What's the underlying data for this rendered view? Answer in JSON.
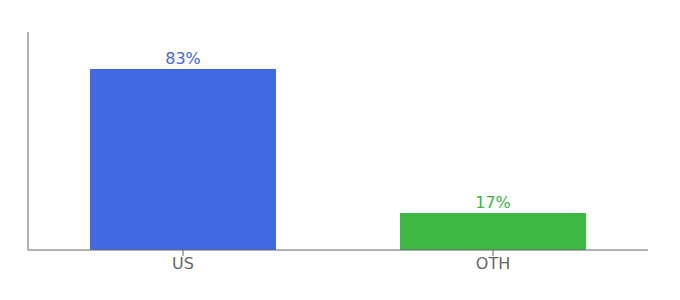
{
  "chart_data": {
    "type": "bar",
    "categories": [
      "US",
      "OTH"
    ],
    "values": [
      83,
      17
    ],
    "value_labels": [
      "83%",
      "17%"
    ],
    "colors": [
      "#4169e1",
      "#3cb843"
    ],
    "ylim": [
      0,
      100
    ],
    "data_labels": true,
    "tick_labels": "x",
    "grid": false
  }
}
